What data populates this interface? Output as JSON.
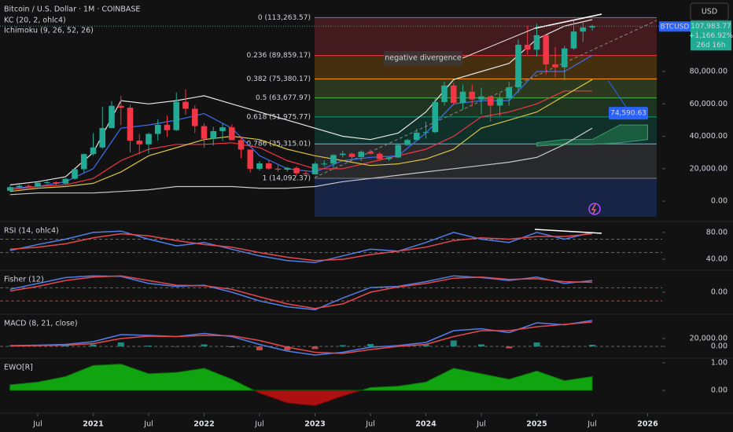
{
  "chart_data": [
    {
      "type": "candlestick",
      "title": "Bitcoin / U.S. Dollar · 1M · COINBASE",
      "indicators": [
        "KC (20, 2, ohlc4)",
        "Ichimoku (9, 26, 52, 26)"
      ],
      "currency": "USD",
      "symbol": "BTCUSD",
      "last_price": {
        "value": 107983.77,
        "label": "107,983.77"
      },
      "change": "+1,166.92%",
      "countdown": "26d 16h",
      "up_color": "#22ab94",
      "down_color": "#f23645",
      "ylim": [
        -11600,
        124100
      ],
      "yticks": [
        {
          "value": 0,
          "label": "0.00"
        },
        {
          "value": 20000,
          "label": "20,000.00"
        },
        {
          "value": 40000,
          "label": "40,000.00"
        },
        {
          "value": 60000,
          "label": "60,000.00"
        },
        {
          "value": 80000,
          "label": "80,000.00"
        }
      ],
      "xticks": [
        {
          "value": "2020-07",
          "label": "Jul"
        },
        {
          "value": "2021-01",
          "label": "2021"
        },
        {
          "value": "2021-07",
          "label": "Jul"
        },
        {
          "value": "2022-01",
          "label": "2022"
        },
        {
          "value": "2022-07",
          "label": "Jul"
        },
        {
          "value": "2023-01",
          "label": "2023"
        },
        {
          "value": "2023-07",
          "label": "Jul"
        },
        {
          "value": "2024-01",
          "label": "2024"
        },
        {
          "value": "2024-07",
          "label": "Jul"
        },
        {
          "value": "2025-01",
          "label": "2025"
        },
        {
          "value": "2025-07",
          "label": "Jul"
        },
        {
          "value": "2026-01",
          "label": "2026"
        }
      ],
      "x": [
        "2020-04",
        "2020-05",
        "2020-06",
        "2020-07",
        "2020-08",
        "2020-09",
        "2020-10",
        "2020-11",
        "2020-12",
        "2021-01",
        "2021-02",
        "2021-03",
        "2021-04",
        "2021-05",
        "2021-06",
        "2021-07",
        "2021-08",
        "2021-09",
        "2021-10",
        "2021-11",
        "2021-12",
        "2022-01",
        "2022-02",
        "2022-03",
        "2022-04",
        "2022-05",
        "2022-06",
        "2022-07",
        "2022-08",
        "2022-09",
        "2022-10",
        "2022-11",
        "2022-12",
        "2023-01",
        "2023-02",
        "2023-03",
        "2023-04",
        "2023-05",
        "2023-06",
        "2023-07",
        "2023-08",
        "2023-09",
        "2023-10",
        "2023-11",
        "2023-12",
        "2024-01",
        "2024-02",
        "2024-03",
        "2024-04",
        "2024-05",
        "2024-06",
        "2024-07",
        "2024-08",
        "2024-09",
        "2024-10",
        "2024-11",
        "2024-12",
        "2025-01",
        "2025-02",
        "2025-03",
        "2025-04",
        "2025-05",
        "2025-06",
        "2025-07"
      ],
      "open": [
        6430,
        8620,
        9450,
        9140,
        11350,
        11660,
        10780,
        13800,
        19700,
        29000,
        33100,
        45140,
        58800,
        57700,
        37300,
        35040,
        41460,
        47100,
        43790,
        61300,
        57000,
        46300,
        38480,
        43190,
        45530,
        37640,
        31800,
        19930,
        23290,
        20050,
        19420,
        20490,
        17170,
        16540,
        23130,
        23140,
        28470,
        29270,
        27220,
        30480,
        29230,
        25940,
        26960,
        34650,
        37720,
        42270,
        42580,
        61130,
        71300,
        60670,
        67520,
        62770,
        64620,
        58970,
        63330,
        70220,
        96450,
        93430,
        102410,
        84350,
        82550,
        94200,
        104600,
        107170
      ],
      "high": [
        9460,
        10070,
        10380,
        11440,
        12470,
        12080,
        14100,
        19860,
        29300,
        41950,
        58350,
        61780,
        64900,
        59600,
        41330,
        42300,
        50500,
        52920,
        67000,
        69000,
        59100,
        47990,
        45850,
        48190,
        47440,
        39980,
        31990,
        24670,
        25210,
        22800,
        21100,
        21470,
        18390,
        23960,
        25270,
        29190,
        31000,
        29840,
        31430,
        31800,
        30220,
        27480,
        35200,
        38420,
        44700,
        48970,
        64000,
        73800,
        72800,
        71980,
        71980,
        70000,
        65000,
        66500,
        73620,
        99800,
        108300,
        109350,
        102500,
        95000,
        95800,
        111980,
        110600,
        108900
      ],
      "low": [
        6160,
        8120,
        8900,
        8990,
        10520,
        9880,
        10420,
        13200,
        17570,
        28130,
        32300,
        45000,
        47040,
        30000,
        28800,
        29280,
        37330,
        39600,
        43290,
        53250,
        42000,
        32900,
        34320,
        37160,
        37680,
        26700,
        17570,
        18780,
        19520,
        18150,
        18190,
        15480,
        16260,
        16500,
        21350,
        19570,
        26940,
        25810,
        24780,
        28860,
        25170,
        24900,
        26560,
        34110,
        37630,
        38550,
        41880,
        59000,
        59100,
        56550,
        58400,
        53500,
        49000,
        52550,
        58900,
        66800,
        90500,
        89200,
        78200,
        76600,
        74590,
        93400,
        98240,
        105200
      ],
      "close": [
        8620,
        9450,
        9140,
        11350,
        11660,
        10780,
        13800,
        19700,
        29000,
        33100,
        45140,
        58800,
        57700,
        37300,
        35040,
        41460,
        47100,
        43790,
        61300,
        57000,
        46300,
        38480,
        43190,
        45530,
        37640,
        31800,
        19930,
        23290,
        20050,
        19420,
        20490,
        17170,
        16540,
        23130,
        23140,
        28470,
        29270,
        27220,
        30480,
        29230,
        25940,
        26960,
        34650,
        37720,
        42270,
        42580,
        61130,
        71300,
        60670,
        67520,
        62770,
        64620,
        58970,
        63330,
        70220,
        96450,
        93430,
        102410,
        84350,
        82550,
        94200,
        104600,
        107170,
        107983.77
      ],
      "overlay_x": [
        "2020-04",
        "2020-07",
        "2020-10",
        "2021-01",
        "2021-04",
        "2021-07",
        "2021-10",
        "2022-01",
        "2022-04",
        "2022-07",
        "2022-10",
        "2023-01",
        "2023-04",
        "2023-07",
        "2023-10",
        "2024-01",
        "2024-04",
        "2024-07",
        "2024-10",
        "2025-01",
        "2025-04",
        "2025-07"
      ],
      "overlays": [
        {
          "color": "#e6e6e6",
          "values": [
            10000,
            12000,
            15000,
            30000,
            62000,
            60000,
            62000,
            65000,
            60000,
            55000,
            50000,
            45000,
            40000,
            38000,
            42000,
            55000,
            75000,
            80000,
            85000,
            100000,
            108000,
            112000
          ]
        },
        {
          "color": "#3d6ff0",
          "values": [
            8000,
            9000,
            12000,
            20000,
            45000,
            47000,
            50000,
            54000,
            45000,
            28000,
            20000,
            18000,
            25000,
            27000,
            28000,
            42000,
            60000,
            62000,
            62000,
            80000,
            80000,
            90000
          ]
        },
        {
          "color": "#f23645",
          "values": [
            7000,
            9000,
            10000,
            14000,
            25000,
            32000,
            35000,
            35000,
            36000,
            33000,
            25000,
            20000,
            20000,
            24000,
            28000,
            32000,
            40000,
            52000,
            55000,
            60000,
            68000,
            68000
          ]
        },
        {
          "color": "#d8c440",
          "values": [
            6000,
            8000,
            9000,
            11000,
            18000,
            28000,
            33000,
            38000,
            40000,
            38000,
            32000,
            28000,
            25000,
            22000,
            23000,
            26000,
            32000,
            45000,
            50000,
            55000,
            65000,
            75000
          ]
        },
        {
          "color": "#c8c8c8",
          "values": [
            4000,
            5000,
            5000,
            5000,
            6000,
            7000,
            9000,
            9000,
            9000,
            8000,
            8000,
            9000,
            12000,
            14000,
            16000,
            18000,
            20000,
            22000,
            24000,
            27000,
            35000,
            45000
          ]
        }
      ],
      "cloud": {
        "color": "#1e6f4a",
        "x": [
          "2025-01",
          "2025-04",
          "2025-07",
          "2025-10",
          "2026-01"
        ],
        "upper": [
          36000,
          38000,
          38000,
          47000,
          47000
        ],
        "lower": [
          34000,
          35000,
          35000,
          36000,
          38000
        ]
      },
      "fib_levels": [
        {
          "value": 113263.57,
          "label": "0 (113,263.57)"
        },
        {
          "value": 89859.17,
          "label": "0.236 (89,859.17)"
        },
        {
          "value": 75380.17,
          "label": "0.382 (75,380.17)"
        },
        {
          "value": 63677.97,
          "label": "0.5 (63,677.97)"
        },
        {
          "value": 51975.77,
          "label": "0.618 (51,975.77)"
        },
        {
          "value": 35315.01,
          "label": "0.786 (35,315.01)"
        },
        {
          "value": 14092.37,
          "label": "1 (14,092.37)"
        }
      ],
      "fib_line_colors": [
        "#787b86",
        "#f23645",
        "#ff9800",
        "#4caf50",
        "#089981",
        "#64b5f6",
        "#787b86"
      ],
      "fib_zone_colors": [
        "#f23645",
        "#ff9800",
        "#8bc34a",
        "#4caf50",
        "#089981",
        "#787b86",
        "#2962ff"
      ],
      "annotation": "negative divergence",
      "low_marker": {
        "value": 74590.63,
        "label": "74,590.63"
      }
    },
    {
      "type": "line",
      "title": "RSI (14, ohlc4)",
      "ylim": [
        26,
        94
      ],
      "yticks": [
        {
          "value": 40,
          "label": "40.00"
        },
        {
          "value": 80,
          "label": "80.00"
        }
      ],
      "bands": [
        70,
        50
      ],
      "x": [
        "2020-04",
        "2020-07",
        "2020-10",
        "2021-01",
        "2021-04",
        "2021-07",
        "2021-10",
        "2022-01",
        "2022-04",
        "2022-07",
        "2022-10",
        "2023-01",
        "2023-04",
        "2023-07",
        "2023-10",
        "2024-01",
        "2024-04",
        "2024-07",
        "2024-10",
        "2025-01",
        "2025-04",
        "2025-07"
      ],
      "series": [
        {
          "color": "#4f7fe8",
          "values": [
            53,
            62,
            70,
            80,
            82,
            70,
            60,
            65,
            55,
            45,
            38,
            35,
            45,
            55,
            52,
            65,
            80,
            70,
            65,
            80,
            70,
            80
          ]
        },
        {
          "color": "#e5484d",
          "values": [
            55,
            58,
            63,
            72,
            78,
            75,
            68,
            62,
            58,
            50,
            43,
            38,
            40,
            47,
            52,
            58,
            68,
            72,
            70,
            74,
            74,
            78
          ]
        }
      ]
    },
    {
      "type": "line",
      "title": "Fisher (12)",
      "ylim": [
        -3.5,
        3.5
      ],
      "yticks": [
        {
          "value": 0,
          "label": "0.00"
        }
      ],
      "bands": [
        0.75,
        -1.5
      ],
      "x": [
        "2020-04",
        "2020-07",
        "2020-10",
        "2021-01",
        "2021-04",
        "2021-07",
        "2021-10",
        "2022-01",
        "2022-04",
        "2022-07",
        "2022-10",
        "2023-01",
        "2023-04",
        "2023-07",
        "2023-10",
        "2024-01",
        "2024-04",
        "2024-07",
        "2024-10",
        "2025-01",
        "2025-04",
        "2025-07"
      ],
      "series": [
        {
          "color": "#4f7fe8",
          "values": [
            0.5,
            1.5,
            2.5,
            2.8,
            2.7,
            1.5,
            1,
            1.2,
            0,
            -1.5,
            -2.5,
            -3,
            -1,
            0.8,
            1,
            1.8,
            2.8,
            2.5,
            2,
            2.6,
            1.5,
            2
          ]
        },
        {
          "color": "#e5484d",
          "values": [
            0.2,
            1,
            2,
            2.6,
            2.8,
            2,
            1.2,
            1.1,
            0.5,
            -0.8,
            -2,
            -2.8,
            -2,
            0,
            0.9,
            1.5,
            2.4,
            2.6,
            2.2,
            2.3,
            1.8,
            1.7
          ]
        }
      ]
    },
    {
      "type": "line",
      "title": "MACD (8, 21, close)",
      "ylim": [
        -28000,
        78000
      ],
      "yticks": [
        {
          "value": 0,
          "label": "0.00"
        },
        {
          "value": 20000,
          "label": "20,000.00"
        }
      ],
      "bands": [
        0
      ],
      "up_color": "#26a69a",
      "down_color": "#ef5350",
      "x": [
        "2020-04",
        "2020-07",
        "2020-10",
        "2021-01",
        "2021-04",
        "2021-07",
        "2021-10",
        "2022-01",
        "2022-04",
        "2022-07",
        "2022-10",
        "2023-01",
        "2023-04",
        "2023-07",
        "2023-10",
        "2024-01",
        "2024-04",
        "2024-07",
        "2024-10",
        "2025-01",
        "2025-04",
        "2025-07"
      ],
      "series": [
        {
          "style": "bar",
          "values": [
            1000,
            1000,
            2000,
            5000,
            10000,
            2000,
            0,
            5000,
            -2000,
            -10000,
            -10000,
            -7000,
            3000,
            6000,
            2000,
            5000,
            15000,
            5000,
            -5000,
            10000,
            -1000,
            4000
          ]
        },
        {
          "color": "#4f7fe8",
          "values": [
            2000,
            3000,
            5000,
            12000,
            30000,
            28000,
            25000,
            33000,
            25000,
            5000,
            -12000,
            -22000,
            -15000,
            -2000,
            2000,
            10000,
            40000,
            45000,
            35000,
            60000,
            55000,
            66000
          ]
        },
        {
          "color": "#e5484d",
          "values": [
            1000,
            2000,
            3000,
            7000,
            20000,
            26000,
            25000,
            28000,
            27000,
            15000,
            -2000,
            -15000,
            -18000,
            -8000,
            0,
            5000,
            25000,
            40000,
            40000,
            50000,
            56000,
            62000
          ]
        }
      ]
    },
    {
      "type": "area",
      "title": "EWO[R]",
      "ylim": [
        -0.71,
        1.11
      ],
      "yticks": [
        {
          "value": 0,
          "label": "0.00"
        },
        {
          "value": 1,
          "label": "1.00"
        }
      ],
      "up_color": "#10c010",
      "down_color": "#c81010",
      "x": [
        "2020-04",
        "2020-07",
        "2020-10",
        "2021-01",
        "2021-04",
        "2021-07",
        "2021-10",
        "2022-01",
        "2022-04",
        "2022-07",
        "2022-10",
        "2023-01",
        "2023-04",
        "2023-07",
        "2023-10",
        "2024-01",
        "2024-04",
        "2024-07",
        "2024-10",
        "2025-01",
        "2025-04",
        "2025-07"
      ],
      "values": [
        0.2,
        0.3,
        0.5,
        0.9,
        0.95,
        0.6,
        0.65,
        0.8,
        0.4,
        -0.1,
        -0.45,
        -0.55,
        -0.2,
        0.1,
        0.15,
        0.3,
        0.8,
        0.6,
        0.4,
        0.7,
        0.35,
        0.5
      ]
    }
  ]
}
